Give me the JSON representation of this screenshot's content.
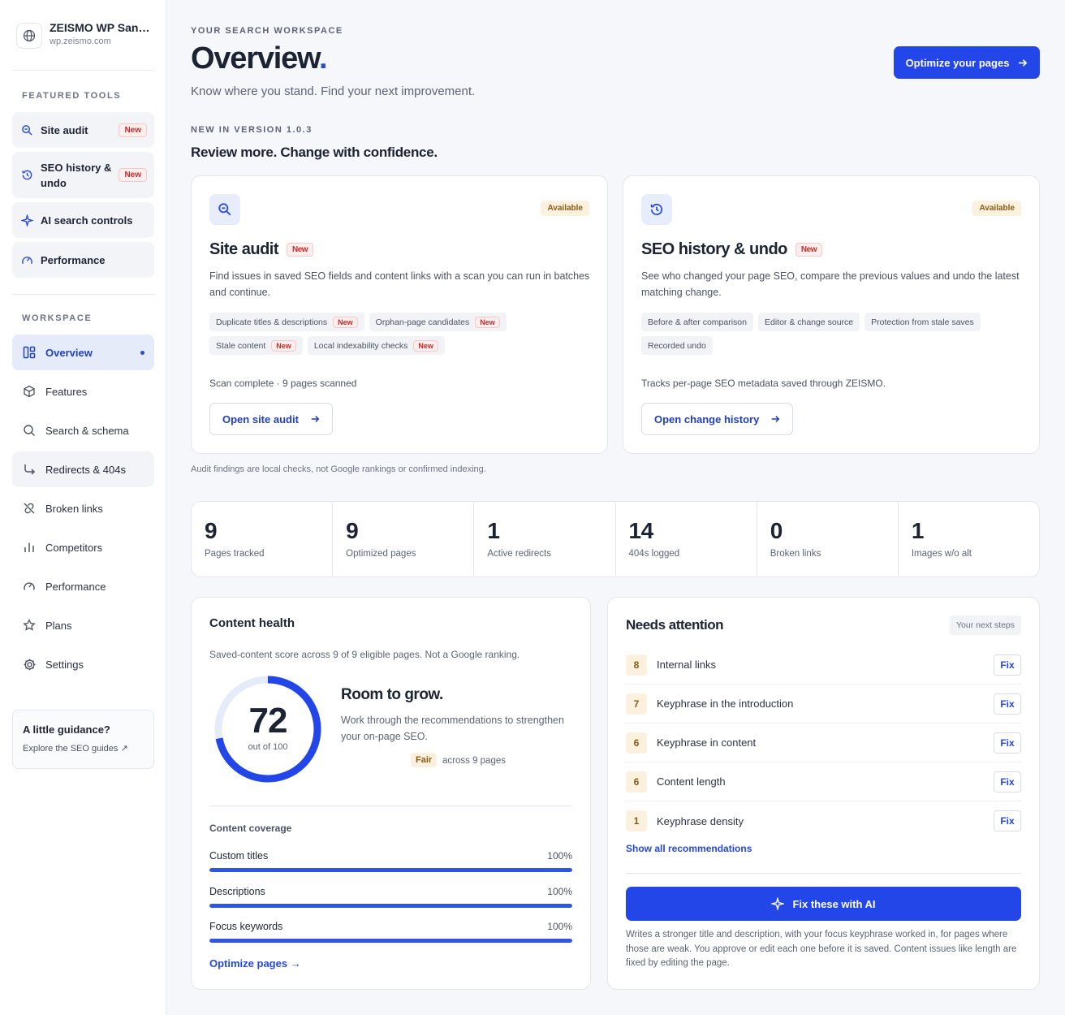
{
  "site": {
    "name": "ZEISMO WP Sandbox",
    "url": "wp.zeismo.com"
  },
  "sidebar": {
    "featured_label": "FEATURED TOOLS",
    "featured": [
      {
        "label": "Site audit",
        "badge": "New",
        "icon": "magnifier-icon"
      },
      {
        "label": "SEO history & undo",
        "badge": "New",
        "icon": "history-icon"
      },
      {
        "label": "AI search controls",
        "icon": "sparkle-icon"
      },
      {
        "label": "Performance",
        "icon": "gauge-icon"
      }
    ],
    "workspace_label": "WORKSPACE",
    "nav": [
      {
        "label": "Overview",
        "icon": "dashboard-icon",
        "active": true
      },
      {
        "label": "Features",
        "icon": "cube-icon"
      },
      {
        "label": "Search & schema",
        "icon": "search-icon"
      },
      {
        "label": "Redirects & 404s",
        "icon": "redirect-arrow-icon"
      },
      {
        "label": "Broken links",
        "icon": "broken-link-icon"
      },
      {
        "label": "Competitors",
        "icon": "bar-chart-icon"
      },
      {
        "label": "Performance",
        "icon": "gauge-icon"
      },
      {
        "label": "Plans",
        "icon": "star-icon"
      },
      {
        "label": "Settings",
        "icon": "gear-icon"
      }
    ],
    "guidance": {
      "title": "A little guidance?",
      "link": "Explore the SEO guides ↗"
    }
  },
  "header": {
    "eyebrow": "YOUR SEARCH WORKSPACE",
    "title": "Overview",
    "title_accent": ".",
    "subtitle": "Know where you stand. Find your next improvement.",
    "cta": "Optimize your pages"
  },
  "release": {
    "eyebrow": "NEW IN VERSION 1.0.3",
    "headline": "Review more. Change with confidence."
  },
  "feature_cards": [
    {
      "status": "Available",
      "title": "Site audit",
      "badge": "New",
      "description": "Find issues in saved SEO fields and content links with a scan you can run in batches and continue.",
      "chips": [
        {
          "label": "Duplicate titles & descriptions",
          "badge": "New"
        },
        {
          "label": "Orphan-page candidates",
          "badge": "New"
        },
        {
          "label": "Stale content",
          "badge": "New"
        },
        {
          "label": "Local indexability checks",
          "badge": "New"
        }
      ],
      "footer": "Scan complete · 9 pages scanned",
      "button": "Open site audit"
    },
    {
      "status": "Available",
      "title": "SEO history & undo",
      "badge": "New",
      "description": "See who changed your page SEO, compare the previous values and undo the latest matching change.",
      "chips": [
        {
          "label": "Before & after comparison"
        },
        {
          "label": "Editor & change source"
        },
        {
          "label": "Protection from stale saves"
        },
        {
          "label": "Recorded undo"
        }
      ],
      "footer": "Tracks per-page SEO metadata saved through ZEISMO.",
      "button": "Open change history"
    }
  ],
  "audit_note": "Audit findings are local checks, not Google rankings or confirmed indexing.",
  "stats": [
    {
      "value": "9",
      "label": "Pages tracked"
    },
    {
      "value": "9",
      "label": "Optimized pages"
    },
    {
      "value": "1",
      "label": "Active redirects"
    },
    {
      "value": "14",
      "label": "404s logged"
    },
    {
      "value": "0",
      "label": "Broken links"
    },
    {
      "value": "1",
      "label": "Images w/o alt"
    }
  ],
  "content_health": {
    "title": "Content health",
    "subtitle": "Saved-content score across 9 of 9 eligible pages. Not a Google ranking.",
    "score": 72,
    "score_label": "out of 100",
    "score_max": 100,
    "headline": "Room to grow.",
    "description": "Work through the recommendations to strengthen your on-page SEO.",
    "rating": "Fair",
    "rating_scope": "across 9 pages",
    "coverage_title": "Content coverage",
    "coverage": [
      {
        "label": "Custom titles",
        "percent": "100%",
        "value": 100
      },
      {
        "label": "Descriptions",
        "percent": "100%",
        "value": 100
      },
      {
        "label": "Focus keywords",
        "percent": "100%",
        "value": 100
      }
    ],
    "link": "Optimize pages"
  },
  "needs_attention": {
    "title": "Needs attention",
    "tag": "Your next steps",
    "items": [
      {
        "count": "8",
        "label": "Internal links",
        "action": "Fix"
      },
      {
        "count": "7",
        "label": "Keyphrase in the introduction",
        "action": "Fix"
      },
      {
        "count": "6",
        "label": "Keyphrase in content",
        "action": "Fix"
      },
      {
        "count": "6",
        "label": "Content length",
        "action": "Fix"
      },
      {
        "count": "1",
        "label": "Keyphrase density",
        "action": "Fix"
      }
    ],
    "show_all": "Show all recommendations",
    "ai_button": "Fix these with AI",
    "ai_note": "Writes a stronger title and description, with your focus keyphrase worked in, for pages where those are weak. You approve or edit each one before it is saved. Content issues like length are fixed by editing the page."
  },
  "colors": {
    "accent": "#2346e8",
    "gauge_track": "#e6ebfa",
    "warning_bg": "#fcf1df",
    "new_badge": "#c52b2b"
  }
}
